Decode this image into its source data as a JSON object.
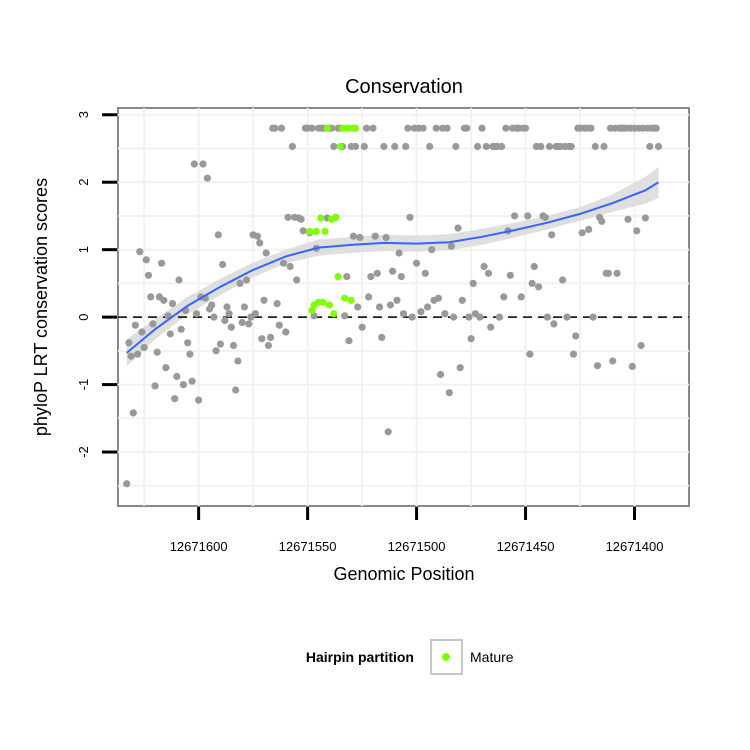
{
  "chart_data": {
    "type": "scatter",
    "title": "Conservation",
    "xlabel": "Genomic Position",
    "ylabel": "phyloP LRT conservation scores",
    "x_reversed": true,
    "xlim": [
      12671637,
      12671375
    ],
    "ylim": [
      -2.8,
      3.1
    ],
    "x_ticks": [
      12671600,
      12671550,
      12671500,
      12671450,
      12671400
    ],
    "x_tick_labels": [
      "12671600",
      "12671550",
      "12671500",
      "12671450",
      "12671400"
    ],
    "y_ticks": [
      -2,
      -1,
      0,
      1,
      2,
      3
    ],
    "y_tick_labels": [
      "-2",
      "-1",
      "0",
      "1",
      "2",
      "3"
    ],
    "grid": true,
    "reference_line": {
      "y": 0,
      "style": "dashed",
      "color": "#000000"
    },
    "legend": {
      "title": "Hairpin partition",
      "placement": "bottom",
      "entries": [
        {
          "label": "Mature",
          "color": "#7fff00"
        }
      ]
    },
    "colors": {
      "other": "#999999",
      "mature": "#7fff00",
      "smooth": "#3366ff",
      "band": "#d9d9d9"
    },
    "series": [
      {
        "key": "other",
        "points": [
          [
            12671633,
            -2.47
          ],
          [
            12671632,
            -0.38
          ],
          [
            12671631,
            -0.58
          ],
          [
            12671630,
            -1.42
          ],
          [
            12671629,
            -0.12
          ],
          [
            12671628,
            -0.55
          ],
          [
            12671627,
            0.97
          ],
          [
            12671626,
            -0.22
          ],
          [
            12671625,
            -0.45
          ],
          [
            12671624,
            0.85
          ],
          [
            12671623,
            0.62
          ],
          [
            12671622,
            0.3
          ],
          [
            12671621,
            -0.1
          ],
          [
            12671620,
            -1.02
          ],
          [
            12671619,
            -0.52
          ],
          [
            12671618,
            0.3
          ],
          [
            12671617,
            0.8
          ],
          [
            12671616,
            0.25
          ],
          [
            12671615,
            -0.75
          ],
          [
            12671614,
            0.02
          ],
          [
            12671613,
            -0.25
          ],
          [
            12671612,
            0.2
          ],
          [
            12671611,
            -1.21
          ],
          [
            12671610,
            -0.88
          ],
          [
            12671609,
            0.55
          ],
          [
            12671608,
            -0.18
          ],
          [
            12671607,
            -1.0
          ],
          [
            12671606,
            0.1
          ],
          [
            12671605,
            -0.38
          ],
          [
            12671604,
            -0.55
          ],
          [
            12671603,
            -0.95
          ],
          [
            12671602,
            2.27
          ],
          [
            12671601,
            0.05
          ],
          [
            12671600,
            -1.23
          ],
          [
            12671599,
            0.3
          ],
          [
            12671598,
            2.27
          ],
          [
            12671597,
            0.28
          ],
          [
            12671596,
            2.06
          ],
          [
            12671595,
            0.12
          ],
          [
            12671594,
            0.18
          ],
          [
            12671593,
            0.0
          ],
          [
            12671592,
            -0.5
          ],
          [
            12671591,
            1.22
          ],
          [
            12671590,
            -0.4
          ],
          [
            12671589,
            0.78
          ],
          [
            12671588,
            -0.05
          ],
          [
            12671587,
            0.15
          ],
          [
            12671586,
            0.05
          ],
          [
            12671585,
            -0.15
          ],
          [
            12671584,
            -0.42
          ],
          [
            12671583,
            -1.08
          ],
          [
            12671582,
            -0.65
          ],
          [
            12671581,
            0.5
          ],
          [
            12671580,
            -0.08
          ],
          [
            12671579,
            0.15
          ],
          [
            12671578,
            0.55
          ],
          [
            12671577,
            -0.1
          ],
          [
            12671576,
            0.0
          ],
          [
            12671575,
            1.22
          ],
          [
            12671574,
            0.05
          ],
          [
            12671573,
            1.2
          ],
          [
            12671572,
            1.1
          ],
          [
            12671571,
            -0.32
          ],
          [
            12671570,
            0.25
          ],
          [
            12671569,
            0.95
          ],
          [
            12671568,
            -0.42
          ],
          [
            12671567,
            -0.3
          ],
          [
            12671566,
            2.8
          ],
          [
            12671565,
            2.8
          ],
          [
            12671564,
            0.2
          ],
          [
            12671563,
            -0.12
          ],
          [
            12671562,
            2.8
          ],
          [
            12671561,
            0.8
          ],
          [
            12671560,
            -0.22
          ],
          [
            12671559,
            1.48
          ],
          [
            12671558,
            0.75
          ],
          [
            12671557,
            2.53
          ],
          [
            12671556,
            1.48
          ],
          [
            12671555,
            0.55
          ],
          [
            12671554,
            1.47
          ],
          [
            12671553,
            1.45
          ],
          [
            12671552,
            1.28
          ],
          [
            12671551,
            2.8
          ],
          [
            12671550,
            2.8
          ],
          [
            12671549,
            1.25
          ],
          [
            12671548,
            2.8
          ],
          [
            12671547,
            0.02
          ],
          [
            12671546,
            1.02
          ],
          [
            12671545,
            2.8
          ],
          [
            12671544,
            2.8
          ],
          [
            12671543,
            2.8
          ],
          [
            12671542,
            2.8
          ],
          [
            12671541,
            1.47
          ],
          [
            12671540,
            2.8
          ],
          [
            12671539,
            2.8
          ],
          [
            12671538,
            2.53
          ],
          [
            12671537,
            1.48
          ],
          [
            12671536,
            2.8
          ],
          [
            12671535,
            2.8
          ],
          [
            12671534,
            2.53
          ],
          [
            12671533,
            0.02
          ],
          [
            12671532,
            0.6
          ],
          [
            12671531,
            -0.35
          ],
          [
            12671530,
            2.53
          ],
          [
            12671529,
            1.2
          ],
          [
            12671528,
            2.53
          ],
          [
            12671527,
            0.15
          ],
          [
            12671526,
            1.18
          ],
          [
            12671525,
            -0.15
          ],
          [
            12671524,
            2.53
          ],
          [
            12671523,
            2.8
          ],
          [
            12671522,
            0.3
          ],
          [
            12671521,
            0.6
          ],
          [
            12671520,
            2.8
          ],
          [
            12671519,
            1.2
          ],
          [
            12671518,
            0.65
          ],
          [
            12671517,
            0.15
          ],
          [
            12671516,
            -0.3
          ],
          [
            12671515,
            2.53
          ],
          [
            12671514,
            1.18
          ],
          [
            12671513,
            -1.7
          ],
          [
            12671512,
            0.18
          ],
          [
            12671511,
            0.68
          ],
          [
            12671510,
            2.53
          ],
          [
            12671509,
            0.25
          ],
          [
            12671508,
            0.95
          ],
          [
            12671507,
            0.6
          ],
          [
            12671506,
            0.05
          ],
          [
            12671505,
            2.53
          ],
          [
            12671504,
            2.8
          ],
          [
            12671503,
            1.48
          ],
          [
            12671502,
            0.0
          ],
          [
            12671501,
            2.8
          ],
          [
            12671500,
            0.8
          ],
          [
            12671499,
            2.8
          ],
          [
            12671498,
            0.08
          ],
          [
            12671497,
            2.8
          ],
          [
            12671496,
            0.65
          ],
          [
            12671495,
            0.15
          ],
          [
            12671494,
            2.53
          ],
          [
            12671493,
            1.0
          ],
          [
            12671492,
            0.25
          ],
          [
            12671491,
            2.8
          ],
          [
            12671490,
            0.28
          ],
          [
            12671489,
            -0.85
          ],
          [
            12671488,
            2.8
          ],
          [
            12671487,
            0.05
          ],
          [
            12671486,
            2.8
          ],
          [
            12671485,
            -1.12
          ],
          [
            12671484,
            1.05
          ],
          [
            12671483,
            0.0
          ],
          [
            12671482,
            2.53
          ],
          [
            12671481,
            1.32
          ],
          [
            12671480,
            -0.75
          ],
          [
            12671479,
            0.25
          ],
          [
            12671478,
            2.8
          ],
          [
            12671477,
            2.8
          ],
          [
            12671476,
            0.0
          ],
          [
            12671475,
            -0.32
          ],
          [
            12671474,
            0.5
          ],
          [
            12671473,
            0.05
          ],
          [
            12671472,
            2.53
          ],
          [
            12671471,
            0.0
          ],
          [
            12671470,
            2.8
          ],
          [
            12671469,
            0.75
          ],
          [
            12671468,
            2.53
          ],
          [
            12671467,
            0.65
          ],
          [
            12671466,
            -0.15
          ],
          [
            12671465,
            2.53
          ],
          [
            12671464,
            2.53
          ],
          [
            12671463,
            2.53
          ],
          [
            12671462,
            0.0
          ],
          [
            12671461,
            2.53
          ],
          [
            12671460,
            0.3
          ],
          [
            12671459,
            2.8
          ],
          [
            12671458,
            1.28
          ],
          [
            12671457,
            0.62
          ],
          [
            12671456,
            2.8
          ],
          [
            12671455,
            1.5
          ],
          [
            12671454,
            2.8
          ],
          [
            12671453,
            2.8
          ],
          [
            12671452,
            0.3
          ],
          [
            12671451,
            2.8
          ],
          [
            12671450,
            2.8
          ],
          [
            12671449,
            1.5
          ],
          [
            12671448,
            -0.55
          ],
          [
            12671447,
            0.5
          ],
          [
            12671446,
            0.75
          ],
          [
            12671445,
            2.53
          ],
          [
            12671444,
            0.45
          ],
          [
            12671443,
            2.53
          ],
          [
            12671442,
            1.5
          ],
          [
            12671441,
            1.48
          ],
          [
            12671440,
            0.0
          ],
          [
            12671439,
            2.53
          ],
          [
            12671438,
            1.22
          ],
          [
            12671437,
            -0.1
          ],
          [
            12671436,
            2.53
          ],
          [
            12671435,
            2.53
          ],
          [
            12671434,
            2.53
          ],
          [
            12671433,
            0.55
          ],
          [
            12671432,
            2.53
          ],
          [
            12671431,
            0.0
          ],
          [
            12671430,
            2.53
          ],
          [
            12671429,
            2.53
          ],
          [
            12671428,
            -0.55
          ],
          [
            12671427,
            -0.28
          ],
          [
            12671426,
            2.8
          ],
          [
            12671425,
            2.8
          ],
          [
            12671424,
            1.25
          ],
          [
            12671423,
            2.8
          ],
          [
            12671422,
            2.8
          ],
          [
            12671421,
            1.3
          ],
          [
            12671420,
            2.8
          ],
          [
            12671419,
            0.0
          ],
          [
            12671418,
            2.53
          ],
          [
            12671417,
            -0.72
          ],
          [
            12671416,
            1.48
          ],
          [
            12671415,
            1.42
          ],
          [
            12671414,
            2.53
          ],
          [
            12671413,
            0.65
          ],
          [
            12671412,
            0.65
          ],
          [
            12671411,
            2.8
          ],
          [
            12671410,
            -0.65
          ],
          [
            12671409,
            2.8
          ],
          [
            12671408,
            0.65
          ],
          [
            12671407,
            2.8
          ],
          [
            12671406,
            2.8
          ],
          [
            12671405,
            2.8
          ],
          [
            12671404,
            2.8
          ],
          [
            12671403,
            1.45
          ],
          [
            12671402,
            2.8
          ],
          [
            12671401,
            -0.73
          ],
          [
            12671400,
            2.8
          ],
          [
            12671399,
            1.28
          ],
          [
            12671398,
            2.8
          ],
          [
            12671397,
            -0.42
          ],
          [
            12671396,
            2.8
          ],
          [
            12671395,
            1.47
          ],
          [
            12671394,
            2.8
          ],
          [
            12671393,
            2.53
          ],
          [
            12671392,
            2.8
          ],
          [
            12671391,
            2.8
          ],
          [
            12671390,
            2.8
          ],
          [
            12671389,
            2.53
          ]
        ]
      },
      {
        "key": "mature",
        "points": [
          [
            12671549,
            1.27
          ],
          [
            12671548,
            0.1
          ],
          [
            12671547,
            0.18
          ],
          [
            12671546,
            1.27
          ],
          [
            12671545,
            0.22
          ],
          [
            12671544,
            1.47
          ],
          [
            12671543,
            0.22
          ],
          [
            12671542,
            1.27
          ],
          [
            12671541,
            2.8
          ],
          [
            12671540,
            0.18
          ],
          [
            12671539,
            1.45
          ],
          [
            12671538,
            0.05
          ],
          [
            12671537,
            1.48
          ],
          [
            12671536,
            0.6
          ],
          [
            12671535,
            2.53
          ],
          [
            12671534,
            2.8
          ],
          [
            12671533,
            0.28
          ],
          [
            12671532,
            2.8
          ],
          [
            12671531,
            2.8
          ],
          [
            12671530,
            0.25
          ],
          [
            12671529,
            2.8
          ],
          [
            12671528,
            2.8
          ]
        ]
      }
    ],
    "smooth": {
      "x": [
        12671633,
        12671620,
        12671605,
        12671590,
        12671575,
        12671560,
        12671545,
        12671530,
        12671515,
        12671500,
        12671485,
        12671470,
        12671455,
        12671440,
        12671425,
        12671410,
        12671395,
        12671389
      ],
      "y": [
        -0.53,
        -0.18,
        0.17,
        0.45,
        0.7,
        0.9,
        1.03,
        1.07,
        1.1,
        1.09,
        1.11,
        1.19,
        1.29,
        1.4,
        1.53,
        1.69,
        1.88,
        2.0
      ],
      "band_half_width": [
        0.2,
        0.15,
        0.13,
        0.12,
        0.11,
        0.1,
        0.12,
        0.12,
        0.12,
        0.12,
        0.12,
        0.12,
        0.11,
        0.1,
        0.1,
        0.13,
        0.2,
        0.23
      ]
    }
  }
}
